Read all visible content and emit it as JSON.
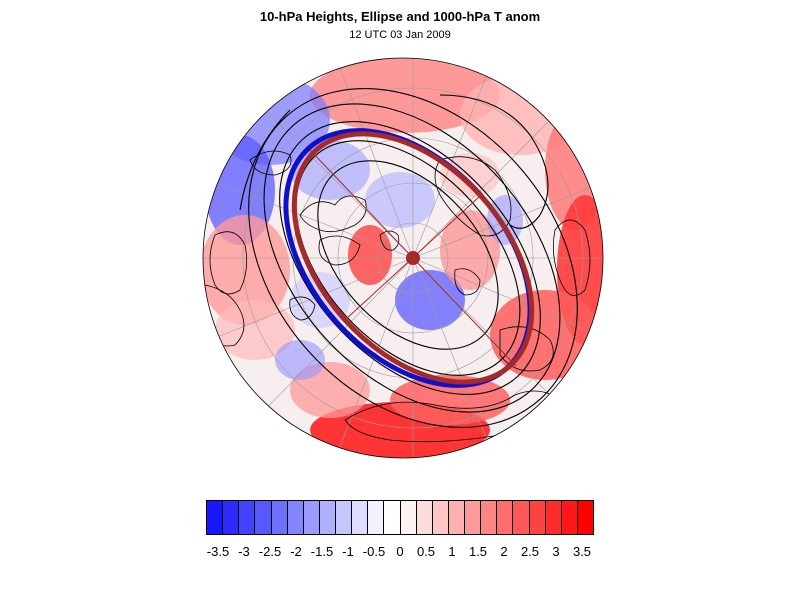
{
  "title": "10-hPa Heights, Ellipse and 1000-hPa T anom",
  "subtitle": "12 UTC 03 Jan 2009",
  "projection": "north-polar-stereographic",
  "overlays": [
    "10-hPa height contours",
    "fitted vortex ellipse",
    "ellipse axes",
    "vortex centroid",
    "coastlines",
    "graticule"
  ],
  "colors": {
    "ellipse": "#a52a2a",
    "ellipse_shadow": "#1010cc",
    "contour": "#000000",
    "coastline": "#000000",
    "graticule": "#9b9b9b"
  },
  "colorbar": {
    "colors": [
      "#1818ff",
      "#2c2cff",
      "#4242ff",
      "#5858ff",
      "#6e6eff",
      "#8484ff",
      "#9a9aff",
      "#b0b0ff",
      "#c6c6ff",
      "#dcdcff",
      "#f2f2ff",
      "#ffffff",
      "#fff2f2",
      "#ffdcdc",
      "#ffc6c6",
      "#ffb0b0",
      "#ff9a9a",
      "#ff8484",
      "#ff6e6e",
      "#ff5858",
      "#ff4242",
      "#ff2c2c",
      "#ff1818",
      "#ff0000"
    ],
    "labels": [
      "-3.5",
      "-3",
      "-2.5",
      "-2",
      "-1.5",
      "-1",
      "-0.5",
      "0",
      "0.5",
      "1",
      "1.5",
      "2",
      "2.5",
      "3",
      "3.5"
    ]
  }
}
